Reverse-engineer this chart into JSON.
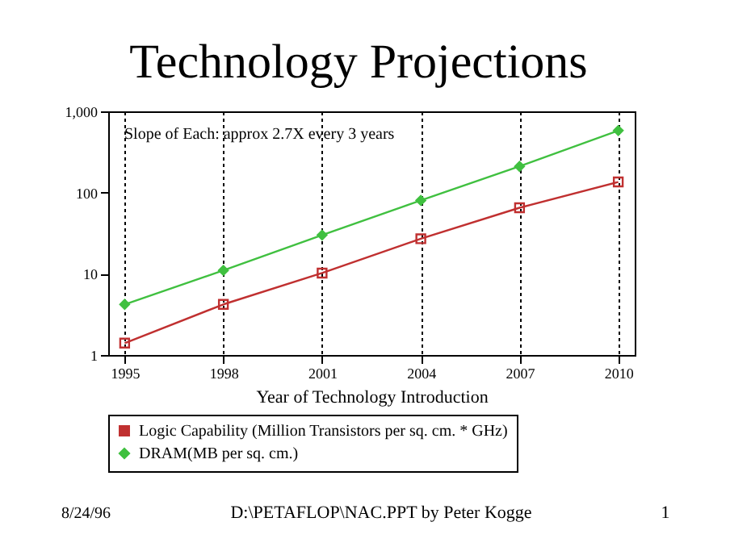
{
  "chart_data": {
    "type": "line",
    "title": "Technology Projections",
    "xlabel": "Year of Technology Introduction",
    "x": [
      1995,
      1998,
      2001,
      2004,
      2007,
      2010
    ],
    "series": [
      {
        "name": "Logic Capability (Million Transistors per sq. cm. * GHz)",
        "color": "#c03030",
        "marker": "square",
        "values": [
          1.4,
          4.2,
          10.2,
          27,
          65,
          135
        ]
      },
      {
        "name": "DRAM(MB per sq. cm.)",
        "color": "#40c040",
        "marker": "diamond",
        "values": [
          4.2,
          11,
          30,
          80,
          210,
          580
        ]
      }
    ],
    "xlim": [
      1994.5,
      2010.5
    ],
    "xticks": [
      1995,
      1998,
      2001,
      2004,
      2007,
      2010
    ],
    "ylim": [
      1,
      1000
    ],
    "yticks": [
      1,
      10,
      100,
      {
        "value": 1000,
        "label": "1,000"
      }
    ],
    "log": "y",
    "grid": "x",
    "legend": "bottom",
    "annotations": [
      "Slope of Each: approx 2.7X every 3 years",
      "8/24/96",
      "D:\\PETAFLOP\\NAC.PPT by Peter Kogge",
      "1"
    ]
  }
}
